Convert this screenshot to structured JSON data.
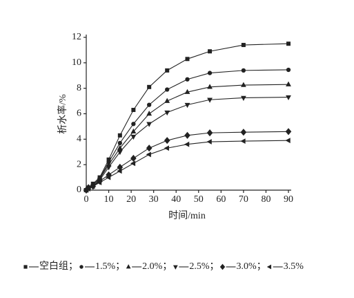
{
  "chart_data": {
    "type": "line",
    "x_label": "时间/min",
    "y_label": "析水率/%",
    "x": [
      0,
      1,
      3,
      6,
      10,
      15,
      21,
      28,
      36,
      45,
      55,
      70,
      90
    ],
    "series": [
      {
        "name": "空白组",
        "color": "#222222",
        "marker": "square",
        "values": [
          0,
          0.2,
          0.5,
          1.0,
          2.4,
          4.3,
          6.3,
          8.1,
          9.4,
          10.3,
          10.9,
          11.4,
          11.5
        ]
      },
      {
        "name": "1.5%",
        "color": "#222222",
        "marker": "circle",
        "values": [
          0,
          0.2,
          0.4,
          0.9,
          2.2,
          3.7,
          5.2,
          6.7,
          7.9,
          8.7,
          9.2,
          9.4,
          9.45
        ]
      },
      {
        "name": "2.0%",
        "color": "#222222",
        "marker": "triangle-up",
        "values": [
          0,
          0.2,
          0.4,
          0.9,
          2.0,
          3.3,
          4.6,
          6.0,
          7.0,
          7.7,
          8.1,
          8.25,
          8.3
        ]
      },
      {
        "name": "2.5%",
        "color": "#222222",
        "marker": "triangle-down",
        "values": [
          0,
          0.2,
          0.3,
          0.8,
          1.8,
          3.0,
          4.2,
          5.2,
          6.1,
          6.7,
          7.1,
          7.25,
          7.3
        ]
      },
      {
        "name": "3.0%",
        "color": "#222222",
        "marker": "diamond",
        "values": [
          0,
          0.2,
          0.3,
          0.7,
          1.2,
          1.8,
          2.5,
          3.3,
          3.9,
          4.3,
          4.5,
          4.55,
          4.6
        ]
      },
      {
        "name": "3.5%",
        "color": "#222222",
        "marker": "triangle-left",
        "values": [
          0,
          0.1,
          0.3,
          0.6,
          1.0,
          1.5,
          2.1,
          2.8,
          3.3,
          3.6,
          3.8,
          3.85,
          3.9
        ]
      }
    ],
    "legend_separator": "；",
    "xlim": [
      0,
      90
    ],
    "xticks": [
      0,
      10,
      20,
      30,
      40,
      50,
      60,
      70,
      80,
      90
    ],
    "ylim": [
      0,
      12
    ],
    "yticks": [
      0,
      2,
      4,
      6,
      8,
      10,
      12
    ],
    "grid": false,
    "legend": "bottom"
  }
}
